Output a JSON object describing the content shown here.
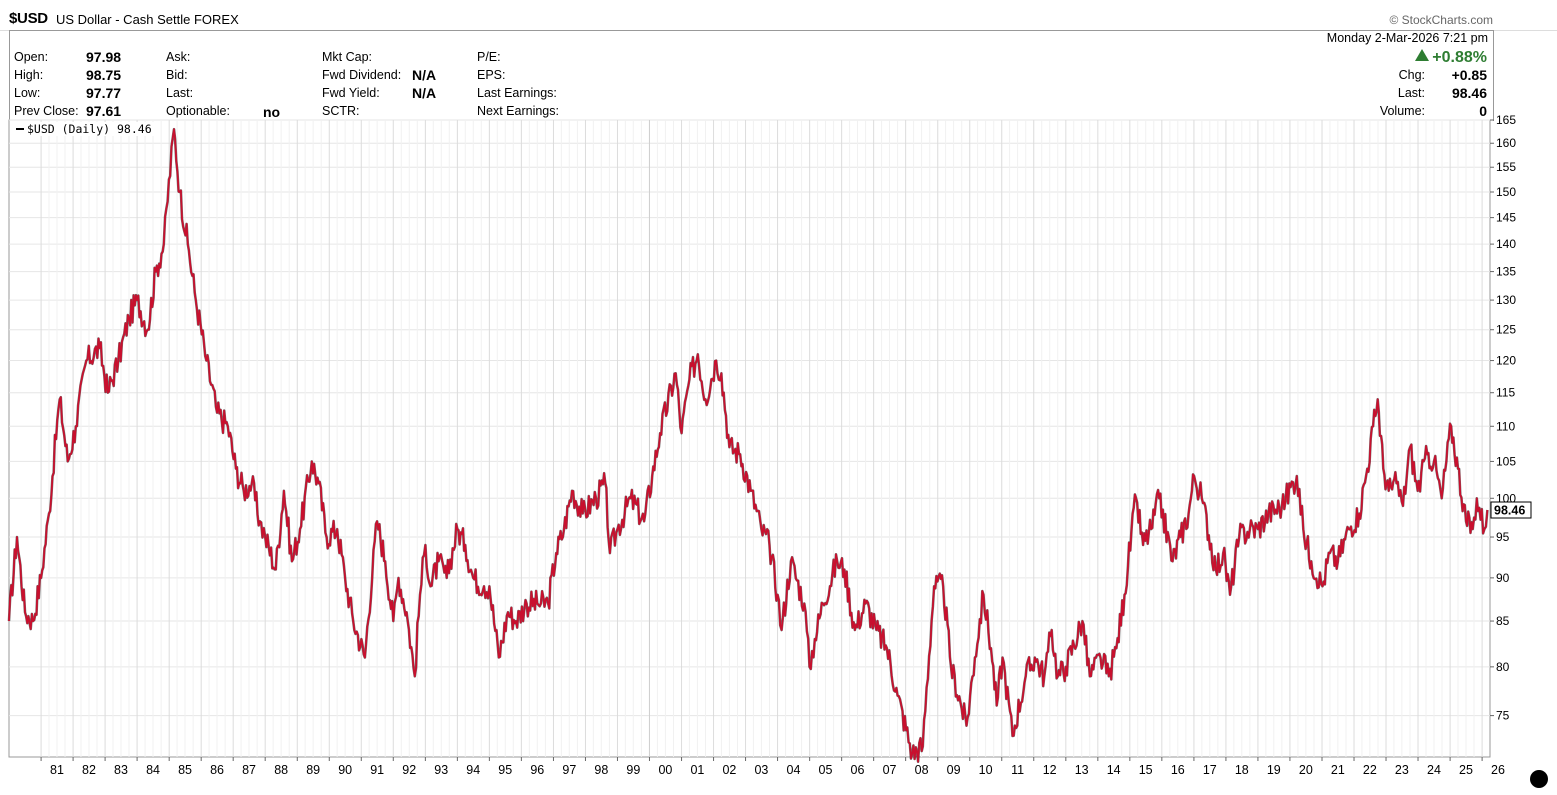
{
  "header": {
    "symbol": "$USD",
    "description": "US Dollar - Cash Settle FOREX",
    "brand": "© StockCharts.com",
    "date": "Monday  2-Mar-2026  7:21 pm",
    "change_pct": "+0.88%"
  },
  "quote": {
    "open_label": "Open:",
    "open": "97.98",
    "high_label": "High:",
    "high": "98.75",
    "low_label": "Low:",
    "low": "97.77",
    "prev_close_label": "Prev Close:",
    "prev_close": "97.61",
    "ask_label": "Ask:",
    "bid_label": "Bid:",
    "last_label_mid": "Last:",
    "optionable_label": "Optionable:",
    "optionable": "no",
    "mkt_cap_label": "Mkt Cap:",
    "fwd_dividend_label": "Fwd Dividend:",
    "fwd_dividend": "N/A",
    "fwd_yield_label": "Fwd Yield:",
    "fwd_yield": "N/A",
    "sctr_label": "SCTR:",
    "pe_label": "P/E:",
    "eps_label": "EPS:",
    "last_earnings_label": "Last Earnings:",
    "next_earnings_label": "Next Earnings:",
    "chg_label": "Chg:",
    "chg": "+0.85",
    "last_label": "Last:",
    "last": "98.46",
    "volume_label": "Volume:",
    "volume": "0"
  },
  "legend": {
    "label": "$USD (Daily) 98.46"
  },
  "chart_data": {
    "type": "line",
    "y_scale": "log",
    "ylim": [
      71,
      165
    ],
    "y_ticks": [
      75,
      80,
      85,
      90,
      95,
      100,
      105,
      110,
      115,
      120,
      125,
      130,
      135,
      140,
      145,
      150,
      155,
      160,
      165
    ],
    "x_tick_labels": [
      "81",
      "82",
      "83",
      "84",
      "85",
      "86",
      "87",
      "88",
      "89",
      "90",
      "91",
      "92",
      "93",
      "94",
      "95",
      "96",
      "97",
      "98",
      "99",
      "00",
      "01",
      "02",
      "03",
      "04",
      "05",
      "06",
      "07",
      "08",
      "09",
      "10",
      "11",
      "12",
      "13",
      "14",
      "15",
      "16",
      "17",
      "18",
      "19",
      "20",
      "21",
      "22",
      "23",
      "24",
      "25",
      "26"
    ],
    "x_tick_years": [
      1981,
      1982,
      1983,
      1984,
      1985,
      1986,
      1987,
      1988,
      1989,
      1990,
      1991,
      1992,
      1993,
      1994,
      1995,
      1996,
      1997,
      1998,
      1999,
      2000,
      2001,
      2002,
      2003,
      2004,
      2005,
      2006,
      2007,
      2008,
      2009,
      2010,
      2011,
      2012,
      2013,
      2014,
      2015,
      2016,
      2017,
      2018,
      2019,
      2020,
      2021,
      2022,
      2023,
      2024,
      2025,
      2026
    ],
    "last_value": "98.46",
    "line_color": "#c8102e",
    "series": [
      {
        "points": [
          [
            "1980-01-01",
            85
          ],
          [
            "1980-04-01",
            95
          ],
          [
            "1980-07-01",
            86
          ],
          [
            "1980-10-01",
            85
          ],
          [
            "1981-01-01",
            90
          ],
          [
            "1981-04-01",
            98
          ],
          [
            "1981-08-01",
            114
          ],
          [
            "1981-11-01",
            105
          ],
          [
            "1982-02-01",
            110
          ],
          [
            "1982-06-01",
            120
          ],
          [
            "1982-11-01",
            122
          ],
          [
            "1983-02-01",
            115
          ],
          [
            "1983-06-01",
            120
          ],
          [
            "1983-10-01",
            127
          ],
          [
            "1984-01-01",
            130
          ],
          [
            "1984-05-01",
            125
          ],
          [
            "1984-08-01",
            135
          ],
          [
            "1984-11-01",
            140
          ],
          [
            "1985-02-25",
            163
          ],
          [
            "1985-05-01",
            150
          ],
          [
            "1985-08-01",
            140
          ],
          [
            "1985-11-01",
            130
          ],
          [
            "1986-03-01",
            120
          ],
          [
            "1986-07-01",
            112
          ],
          [
            "1986-11-01",
            110
          ],
          [
            "1987-02-01",
            104
          ],
          [
            "1987-05-01",
            101
          ],
          [
            "1987-08-01",
            102
          ],
          [
            "1987-11-01",
            97
          ],
          [
            "1988-01-01",
            95
          ],
          [
            "1988-05-01",
            91
          ],
          [
            "1988-08-01",
            101
          ],
          [
            "1988-11-01",
            92
          ],
          [
            "1989-02-01",
            96
          ],
          [
            "1989-06-16",
            105
          ],
          [
            "1989-09-01",
            102
          ],
          [
            "1989-12-01",
            95
          ],
          [
            "1990-04-01",
            96
          ],
          [
            "1990-07-01",
            90
          ],
          [
            "1990-10-01",
            85
          ],
          [
            "1991-02-11",
            81
          ],
          [
            "1991-07-01",
            97
          ],
          [
            "1991-10-01",
            92
          ],
          [
            "1992-01-01",
            85
          ],
          [
            "1992-03-01",
            90
          ],
          [
            "1992-06-01",
            86
          ],
          [
            "1992-09-02",
            79
          ],
          [
            "1992-11-01",
            88
          ],
          [
            "1993-01-01",
            94
          ],
          [
            "1993-03-01",
            89
          ],
          [
            "1993-06-01",
            92
          ],
          [
            "1993-09-01",
            90
          ],
          [
            "1994-01-01",
            96
          ],
          [
            "1994-04-01",
            94
          ],
          [
            "1994-07-01",
            90
          ],
          [
            "1994-11-01",
            89
          ],
          [
            "1995-01-01",
            89
          ],
          [
            "1995-04-19",
            81
          ],
          [
            "1995-08-01",
            86
          ],
          [
            "1995-11-01",
            85
          ],
          [
            "1996-03-01",
            87
          ],
          [
            "1996-07-01",
            87
          ],
          [
            "1996-11-01",
            87
          ],
          [
            "1997-02-01",
            93
          ],
          [
            "1997-05-01",
            96
          ],
          [
            "1997-08-01",
            101
          ],
          [
            "1997-12-01",
            98
          ],
          [
            "1998-05-01",
            100
          ],
          [
            "1998-08-15",
            102
          ],
          [
            "1998-10-07",
            93
          ],
          [
            "1999-01-01",
            96
          ],
          [
            "1999-06-01",
            100
          ],
          [
            "1999-11-01",
            97
          ],
          [
            "2000-02-01",
            103
          ],
          [
            "2000-05-01",
            109
          ],
          [
            "2000-10-26",
            118
          ],
          [
            "2001-01-01",
            109
          ],
          [
            "2001-04-01",
            117
          ],
          [
            "2001-07-05",
            121
          ],
          [
            "2001-10-01",
            114
          ],
          [
            "2002-01-31",
            120
          ],
          [
            "2002-04-01",
            118
          ],
          [
            "2002-07-01",
            107
          ],
          [
            "2002-11-01",
            106
          ],
          [
            "2003-03-01",
            101
          ],
          [
            "2003-07-01",
            96
          ],
          [
            "2003-10-01",
            94
          ],
          [
            "2004-01-01",
            88
          ],
          [
            "2004-02-16",
            84
          ],
          [
            "2004-06-01",
            92
          ],
          [
            "2004-11-01",
            87
          ],
          [
            "2004-12-30",
            80
          ],
          [
            "2005-03-01",
            83
          ],
          [
            "2005-06-01",
            87
          ],
          [
            "2005-11-11",
            92
          ],
          [
            "2006-02-01",
            91
          ],
          [
            "2006-06-01",
            84
          ],
          [
            "2006-10-01",
            87
          ],
          [
            "2007-02-01",
            84
          ],
          [
            "2007-06-01",
            82
          ],
          [
            "2007-10-01",
            77
          ],
          [
            "2008-03-16",
            71.3
          ],
          [
            "2008-07-15",
            72
          ],
          [
            "2008-11-21",
            89
          ],
          [
            "2009-03-04",
            89
          ],
          [
            "2009-06-01",
            80
          ],
          [
            "2009-11-25",
            74
          ],
          [
            "2010-03-01",
            81
          ],
          [
            "2010-06-07",
            88
          ],
          [
            "2010-09-01",
            82
          ],
          [
            "2010-11-05",
            76
          ],
          [
            "2011-01-10",
            81
          ],
          [
            "2011-05-04",
            73
          ],
          [
            "2011-10-01",
            79
          ],
          [
            "2012-01-13",
            81
          ],
          [
            "2012-05-01",
            79
          ],
          [
            "2012-07-24",
            84
          ],
          [
            "2012-10-01",
            79
          ],
          [
            "2013-01-01",
            80
          ],
          [
            "2013-07-09",
            85
          ],
          [
            "2013-10-01",
            79
          ],
          [
            "2014-02-01",
            81
          ],
          [
            "2014-05-06",
            79
          ],
          [
            "2014-08-01",
            82
          ],
          [
            "2014-11-01",
            88
          ],
          [
            "2015-03-13",
            100
          ],
          [
            "2015-06-01",
            94
          ],
          [
            "2015-09-01",
            96
          ],
          [
            "2015-12-02",
            100
          ],
          [
            "2016-05-03",
            92
          ],
          [
            "2016-08-01",
            95
          ],
          [
            "2016-11-01",
            98
          ],
          [
            "2017-01-03",
            103
          ],
          [
            "2017-04-01",
            100
          ],
          [
            "2017-09-08",
            91
          ],
          [
            "2017-12-01",
            93
          ],
          [
            "2018-02-16",
            88
          ],
          [
            "2018-06-01",
            95
          ],
          [
            "2018-10-01",
            96
          ],
          [
            "2019-01-01",
            96
          ],
          [
            "2019-05-01",
            98
          ],
          [
            "2019-10-01",
            99
          ],
          [
            "2020-03-19",
            103
          ],
          [
            "2020-06-01",
            96
          ],
          [
            "2020-09-01",
            92
          ],
          [
            "2021-01-06",
            89
          ],
          [
            "2021-04-01",
            93
          ],
          [
            "2021-07-01",
            92
          ],
          [
            "2021-11-01",
            96
          ],
          [
            "2022-03-01",
            98
          ],
          [
            "2022-06-01",
            104
          ],
          [
            "2022-09-28",
            114
          ],
          [
            "2022-12-01",
            104
          ],
          [
            "2023-02-01",
            101
          ],
          [
            "2023-05-01",
            102
          ],
          [
            "2023-07-14",
            99
          ],
          [
            "2023-10-03",
            107
          ],
          [
            "2023-12-28",
            101
          ],
          [
            "2024-04-16",
            106
          ],
          [
            "2024-07-01",
            105
          ],
          [
            "2024-09-27",
            100
          ],
          [
            "2025-01-13",
            110
          ],
          [
            "2025-04-01",
            104
          ],
          [
            "2025-07-01",
            97
          ],
          [
            "2025-09-16",
            96
          ],
          [
            "2025-11-01",
            100
          ],
          [
            "2026-01-27",
            96
          ],
          [
            "2026-03-02",
            98.46
          ]
        ]
      }
    ]
  }
}
